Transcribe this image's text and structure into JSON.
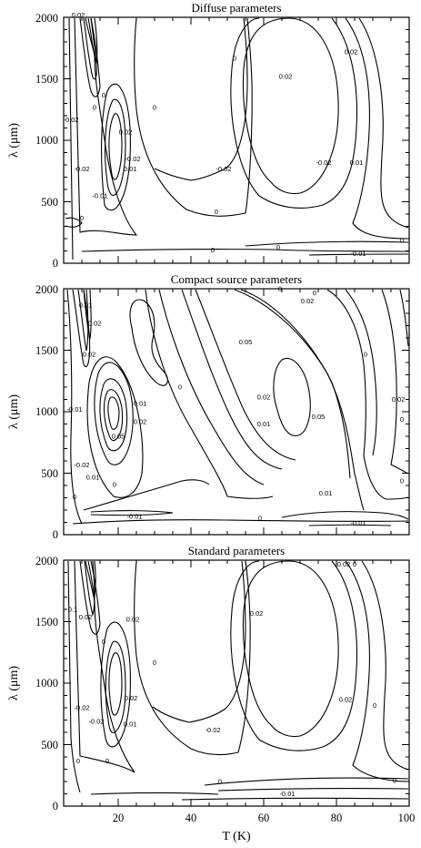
{
  "chart_data": [
    {
      "type": "contour",
      "title": "Diffuse parameters",
      "xlabel": "",
      "ylabel": "λ (μm)",
      "xlim": [
        5,
        100
      ],
      "ylim": [
        0,
        2000
      ],
      "xticks": [
        20,
        40,
        60,
        80,
        100
      ],
      "yticks": [
        0,
        500,
        1000,
        1500,
        2000
      ],
      "xtick_labels": [
        "",
        "",
        "",
        "",
        ""
      ],
      "ytick_labels": [
        "0",
        "500",
        "1000",
        "1500",
        "2000"
      ],
      "contour_labels": [
        {
          "text": "-0.02",
          "x": 7,
          "y": 1150
        },
        {
          "text": "0.02",
          "x": 9,
          "y": 2000
        },
        {
          "text": "0",
          "x": 16,
          "y": 1350
        },
        {
          "text": "0",
          "x": 13.5,
          "y": 1250
        },
        {
          "text": "0.02",
          "x": 22,
          "y": 1050
        },
        {
          "text": "-0.02",
          "x": 24,
          "y": 830
        },
        {
          "text": "0.01",
          "x": 23.3,
          "y": 750
        },
        {
          "text": "0",
          "x": 30,
          "y": 1250
        },
        {
          "text": "0",
          "x": 10,
          "y": 350
        },
        {
          "text": "-0.02",
          "x": 10,
          "y": 750
        },
        {
          "text": "-0.01",
          "x": 15,
          "y": 530
        },
        {
          "text": "-0.02",
          "x": 49,
          "y": 750
        },
        {
          "text": "0",
          "x": 47,
          "y": 400
        },
        {
          "text": "0",
          "x": 52,
          "y": 1650
        },
        {
          "text": "0.02",
          "x": 66,
          "y": 1500
        },
        {
          "text": "0.02",
          "x": 84,
          "y": 1700
        },
        {
          "text": "-0.02",
          "x": 76.5,
          "y": 800
        },
        {
          "text": "0.01",
          "x": 85.5,
          "y": 800
        },
        {
          "text": "0",
          "x": 46,
          "y": 90
        },
        {
          "text": "0",
          "x": 64,
          "y": 110
        },
        {
          "text": "-0.01",
          "x": 86,
          "y": 60
        },
        {
          "text": "0",
          "x": 98,
          "y": 165
        }
      ]
    },
    {
      "type": "contour",
      "title": "Compact source parameters",
      "xlabel": "",
      "ylabel": "λ (μm)",
      "xlim": [
        5,
        100
      ],
      "ylim": [
        0,
        2000
      ],
      "xticks": [
        20,
        40,
        60,
        80,
        100
      ],
      "yticks": [
        0,
        500,
        1000,
        1500,
        2000
      ],
      "xtick_labels": [
        "",
        "",
        "",
        "",
        ""
      ],
      "ytick_labels": [
        "0",
        "500",
        "1000",
        "1500",
        "2000"
      ],
      "contour_labels": [
        {
          "text": "0.01",
          "x": 11,
          "y": 1850
        },
        {
          "text": "0.02",
          "x": 13.5,
          "y": 1700
        },
        {
          "text": "0.02",
          "x": 12,
          "y": 1450
        },
        {
          "text": "-0.01",
          "x": 8,
          "y": 1000
        },
        {
          "text": "0.01",
          "x": 26,
          "y": 1050
        },
        {
          "text": "0.02",
          "x": 26,
          "y": 900
        },
        {
          "text": "0.05",
          "x": 20,
          "y": 780
        },
        {
          "text": "-0.02",
          "x": 10,
          "y": 550
        },
        {
          "text": "0.01",
          "x": 13,
          "y": 450
        },
        {
          "text": "0",
          "x": 8,
          "y": 290
        },
        {
          "text": "0",
          "x": 19,
          "y": 390
        },
        {
          "text": "-0.01",
          "x": 24.5,
          "y": 130
        },
        {
          "text": "0",
          "x": 37,
          "y": 1180
        },
        {
          "text": "0.05",
          "x": 55,
          "y": 1550
        },
        {
          "text": "0.02",
          "x": 60,
          "y": 1100
        },
        {
          "text": "0.01",
          "x": 60,
          "y": 880
        },
        {
          "text": "0.05",
          "x": 75,
          "y": 940
        },
        {
          "text": "0.02",
          "x": 72,
          "y": 1880
        },
        {
          "text": "0",
          "x": 74,
          "y": 1950
        },
        {
          "text": "0.02",
          "x": 97,
          "y": 1080
        },
        {
          "text": "0",
          "x": 98,
          "y": 920
        },
        {
          "text": "0",
          "x": 88,
          "y": 1450
        },
        {
          "text": "0",
          "x": 64.5,
          "y": 1980
        },
        {
          "text": "0.01",
          "x": 77,
          "y": 320
        },
        {
          "text": "-0.01",
          "x": 86,
          "y": 75
        },
        {
          "text": "0",
          "x": 59,
          "y": 115
        },
        {
          "text": "0",
          "x": 98,
          "y": 420
        }
      ]
    },
    {
      "type": "contour",
      "title": "Standard parameters",
      "xlabel": "T (K)",
      "ylabel": "λ (μm)",
      "xlim": [
        5,
        100
      ],
      "ylim": [
        0,
        2000
      ],
      "xticks": [
        20,
        40,
        60,
        80,
        100
      ],
      "yticks": [
        0,
        500,
        1000,
        1500,
        2000
      ],
      "xtick_labels": [
        "20",
        "40",
        "60",
        "80",
        "100"
      ],
      "ytick_labels": [
        "0",
        "500",
        "1000",
        "1500",
        "2000"
      ],
      "contour_labels": [
        {
          "text": "0.1",
          "x": 7.5,
          "y": 1580
        },
        {
          "text": "0.02",
          "x": 11,
          "y": 1520
        },
        {
          "text": "0",
          "x": 16,
          "y": 1320
        },
        {
          "text": "0.02",
          "x": 24,
          "y": 1500
        },
        {
          "text": "0",
          "x": 30,
          "y": 1150
        },
        {
          "text": "0.02",
          "x": 23.5,
          "y": 860
        },
        {
          "text": "0.01",
          "x": 23.3,
          "y": 650
        },
        {
          "text": "-0.02",
          "x": 14,
          "y": 670
        },
        {
          "text": "-0.02",
          "x": 10,
          "y": 780
        },
        {
          "text": "0",
          "x": 9,
          "y": 350
        },
        {
          "text": "0",
          "x": 17,
          "y": 350
        },
        {
          "text": "-0.02",
          "x": 46,
          "y": 600
        },
        {
          "text": "0.02",
          "x": 58,
          "y": 1550
        },
        {
          "text": "0.02",
          "x": 82,
          "y": 1950
        },
        {
          "text": "0",
          "x": 85,
          "y": 1950
        },
        {
          "text": "0.02",
          "x": 82.5,
          "y": 850
        },
        {
          "text": "0",
          "x": 90.5,
          "y": 800
        },
        {
          "text": "0",
          "x": 48,
          "y": 180
        },
        {
          "text": "-0.01",
          "x": 66.5,
          "y": 80
        },
        {
          "text": "0",
          "x": 96,
          "y": 190
        }
      ]
    }
  ]
}
